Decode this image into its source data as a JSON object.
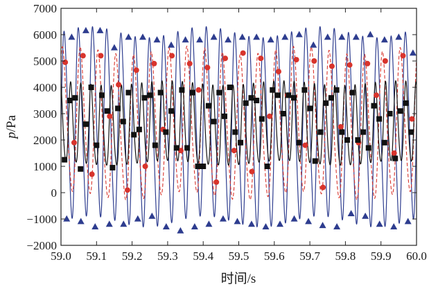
{
  "chart_data": {
    "type": "line",
    "title": "",
    "xlabel": "时间/s",
    "ylabel_italic": "p",
    "ylabel_unit": "/Pa",
    "xlim": [
      59.0,
      60.0
    ],
    "ylim": [
      -2000,
      7000
    ],
    "x_ticks": [
      59.0,
      59.1,
      59.2,
      59.3,
      59.4,
      59.5,
      59.6,
      59.7,
      59.8,
      59.9,
      60.0
    ],
    "x_tick_labels": [
      "59.0",
      "59.1",
      "59.2",
      "59.3",
      "59.4",
      "59.5",
      "59.6",
      "59.7",
      "59.8",
      "59.9",
      "60.0"
    ],
    "y_ticks": [
      -2000,
      -1000,
      0,
      1000,
      2000,
      3000,
      4000,
      5000,
      6000,
      7000
    ],
    "y_tick_labels": [
      "−2000",
      "−1000",
      "0",
      "1000",
      "2000",
      "3000",
      "4000",
      "5000",
      "6000",
      "7000"
    ],
    "grid": false,
    "legend": "none",
    "series": [
      {
        "style": "solid",
        "marker": "triangle",
        "color": "#2e3d8f",
        "frequency_hz": 25,
        "mean": 2500,
        "amplitude": 3500,
        "x": [
          59.016,
          59.056,
          59.096,
          59.136,
          59.176,
          59.216,
          59.256,
          59.296,
          59.336,
          59.376,
          59.416,
          59.456,
          59.496,
          59.536,
          59.576,
          59.616,
          59.656,
          59.696,
          59.736,
          59.776,
          59.816,
          59.856,
          59.896,
          59.936,
          59.976,
          59.03,
          59.07,
          59.11,
          59.15,
          59.19,
          59.23,
          59.27,
          59.31,
          59.35,
          59.39,
          59.43,
          59.47,
          59.51,
          59.55,
          59.59,
          59.63,
          59.67,
          59.71,
          59.75,
          59.79,
          59.83,
          59.87,
          59.91,
          59.95,
          59.99
        ],
        "y": [
          -1000,
          -1100,
          -1300,
          -1200,
          -1200,
          -1000,
          -900,
          -1300,
          -1450,
          -1300,
          -1200,
          -1000,
          -1100,
          -1200,
          -1300,
          -1200,
          -1000,
          -1100,
          -1250,
          -1300,
          -800,
          -900,
          -1200,
          -1300,
          -1100,
          5900,
          6150,
          6150,
          5500,
          5900,
          5900,
          5800,
          5600,
          5800,
          5800,
          5900,
          5800,
          5900,
          5900,
          5800,
          5900,
          6000,
          5600,
          5900,
          5900,
          5900,
          6000,
          5800,
          5900,
          5300
        ]
      },
      {
        "style": "dashed",
        "marker": "circle",
        "color": "#d8342c",
        "frequency_hz": 20,
        "mean": 2500,
        "amplitude": 2700,
        "x": [
          59.012,
          59.037,
          59.062,
          59.087,
          59.112,
          59.137,
          59.162,
          59.187,
          59.212,
          59.237,
          59.262,
          59.287,
          59.312,
          59.337,
          59.362,
          59.387,
          59.412,
          59.437,
          59.462,
          59.487,
          59.512,
          59.537,
          59.562,
          59.587,
          59.612,
          59.637,
          59.662,
          59.687,
          59.712,
          59.737,
          59.762,
          59.787,
          59.812,
          59.837,
          59.862,
          59.887,
          59.912,
          59.937,
          59.962,
          59.987
        ],
        "y": [
          4950,
          1900,
          5200,
          700,
          5200,
          2900,
          4100,
          100,
          4650,
          1000,
          4900,
          2400,
          5200,
          1600,
          4900,
          3900,
          4750,
          400,
          5100,
          1600,
          5300,
          800,
          5100,
          2900,
          4600,
          3700,
          5050,
          1800,
          5000,
          200,
          4800,
          2500,
          4850,
          1900,
          4900,
          3700,
          5000,
          1500,
          5200,
          2800
        ]
      },
      {
        "style": "solid",
        "marker": "square",
        "color": "#111111",
        "frequency_hz": 35,
        "mean": 2500,
        "amplitude": 1500,
        "x": [
          59.01,
          59.025,
          59.04,
          59.055,
          59.07,
          59.085,
          59.1,
          59.115,
          59.13,
          59.145,
          59.16,
          59.175,
          59.19,
          59.205,
          59.22,
          59.235,
          59.25,
          59.265,
          59.28,
          59.295,
          59.31,
          59.325,
          59.34,
          59.355,
          59.37,
          59.385,
          59.4,
          59.415,
          59.43,
          59.445,
          59.46,
          59.475,
          59.49,
          59.505,
          59.52,
          59.535,
          59.55,
          59.565,
          59.58,
          59.595,
          59.61,
          59.625,
          59.64,
          59.655,
          59.67,
          59.685,
          59.7,
          59.715,
          59.73,
          59.745,
          59.76,
          59.775,
          59.79,
          59.805,
          59.82,
          59.835,
          59.85,
          59.865,
          59.88,
          59.895,
          59.91,
          59.925,
          59.94,
          59.955,
          59.97,
          59.985
        ],
        "y": [
          1250,
          3500,
          3600,
          900,
          2600,
          4000,
          1800,
          3700,
          3100,
          950,
          3200,
          2700,
          3800,
          2200,
          2400,
          3600,
          3700,
          1800,
          3800,
          2300,
          3100,
          1700,
          3900,
          1700,
          3800,
          1000,
          1000,
          3300,
          2700,
          3800,
          2900,
          4000,
          2300,
          1900,
          3400,
          3600,
          3500,
          2800,
          1000,
          3900,
          3700,
          3000,
          3700,
          3600,
          1900,
          3900,
          3200,
          1200,
          2300,
          3400,
          3600,
          3900,
          2300,
          2000,
          3800,
          2000,
          2300,
          1700,
          3300,
          2800,
          1900,
          3000,
          1300,
          3100,
          3400,
          2300
        ]
      }
    ]
  }
}
